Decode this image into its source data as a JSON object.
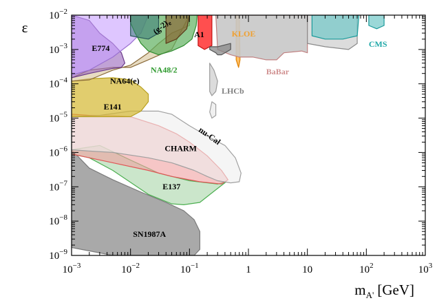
{
  "chart_data": {
    "type": "area",
    "title": "",
    "xlabel": "m",
    "xlabel_subscript": "A'",
    "xlabel_unit": "[GeV]",
    "ylabel": "ε",
    "xscale": "log",
    "yscale": "log",
    "xlim": [
      0.001,
      1000
    ],
    "ylim": [
      1e-09,
      0.01
    ],
    "x_ticks": [
      {
        "value": 0.001,
        "base": "10",
        "exp": "−3"
      },
      {
        "value": 0.01,
        "base": "10",
        "exp": "−2"
      },
      {
        "value": 0.1,
        "base": "10",
        "exp": "−1"
      },
      {
        "value": 1,
        "base": "1",
        "exp": ""
      },
      {
        "value": 10,
        "base": "10",
        "exp": ""
      },
      {
        "value": 100,
        "base": "10",
        "exp": "2"
      },
      {
        "value": 1000,
        "base": "10",
        "exp": "3"
      }
    ],
    "y_ticks": [
      {
        "value": 1e-09,
        "base": "10",
        "exp": "−9"
      },
      {
        "value": 1e-08,
        "base": "10",
        "exp": "−8"
      },
      {
        "value": 1e-07,
        "base": "10",
        "exp": "−7"
      },
      {
        "value": 1e-06,
        "base": "10",
        "exp": "−6"
      },
      {
        "value": 1e-05,
        "base": "10",
        "exp": "−5"
      },
      {
        "value": 0.0001,
        "base": "10",
        "exp": "−4"
      },
      {
        "value": 0.001,
        "base": "10",
        "exp": "−3"
      },
      {
        "value": 0.01,
        "base": "10",
        "exp": "−2"
      }
    ],
    "regions": [
      {
        "name": "SN1987A",
        "fill": "#8c8c8c",
        "stroke": "#7a7a7a",
        "opacity": 0.75,
        "points": [
          [
            0.001,
            1.2e-06
          ],
          [
            0.002,
            3.5e-07
          ],
          [
            0.005,
            1.6e-07
          ],
          [
            0.015,
            7e-08
          ],
          [
            0.04,
            3.5e-08
          ],
          [
            0.08,
            2e-08
          ],
          [
            0.12,
            1.1e-08
          ],
          [
            0.15,
            5e-09
          ],
          [
            0.15,
            1.5e-09
          ],
          [
            0.12,
            1e-09
          ],
          [
            0.005,
            1e-09
          ],
          [
            0.001,
            1.7e-09
          ]
        ]
      },
      {
        "name": "E137",
        "fill": "#a8d5a8",
        "stroke": "#4caf50",
        "opacity": 0.6,
        "points": [
          [
            0.001,
            1.2e-06
          ],
          [
            0.003,
            1.6e-06
          ],
          [
            0.01,
            6e-07
          ],
          [
            0.03,
            2.5e-07
          ],
          [
            0.1,
            1.5e-07
          ],
          [
            0.3,
            1.2e-07
          ],
          [
            0.42,
            1.4e-07
          ],
          [
            0.25,
            7e-08
          ],
          [
            0.15,
            3.5e-08
          ],
          [
            0.08,
            3e-08
          ],
          [
            0.05,
            3.2e-08
          ],
          [
            0.02,
            6e-08
          ],
          [
            0.005,
            3e-07
          ],
          [
            0.002,
            7e-07
          ],
          [
            0.001,
            9e-07
          ]
        ]
      },
      {
        "name": "CHARM",
        "fill": "#f0a0a0",
        "stroke": "#e05555",
        "opacity": 0.6,
        "points": [
          [
            0.001,
            1.3e-05
          ],
          [
            0.002,
            1.2e-05
          ],
          [
            0.005,
            1.2e-05
          ],
          [
            0.01,
            1.1e-05
          ],
          [
            0.03,
            6e-06
          ],
          [
            0.06,
            3.5e-06
          ],
          [
            0.1,
            2e-06
          ],
          [
            0.2,
            8e-07
          ],
          [
            0.35,
            3e-07
          ],
          [
            0.45,
            1.6e-07
          ],
          [
            0.35,
            1.2e-07
          ],
          [
            0.15,
            1.4e-07
          ],
          [
            0.05,
            2e-07
          ],
          [
            0.02,
            3e-07
          ],
          [
            0.005,
            5e-07
          ],
          [
            0.002,
            7e-07
          ],
          [
            0.001,
            9e-07
          ]
        ]
      },
      {
        "name": "nu-Cal",
        "fill": "#eeeeee",
        "stroke": "#a0a0a0",
        "opacity": 0.6,
        "points": [
          [
            0.001,
            1.1e-05
          ],
          [
            0.003,
            1.2e-05
          ],
          [
            0.01,
            1.6e-05
          ],
          [
            0.03,
            1.6e-05
          ],
          [
            0.05,
            1.3e-05
          ],
          [
            0.1,
            6e-06
          ],
          [
            0.2,
            3e-06
          ],
          [
            0.4,
            1.6e-06
          ],
          [
            0.6,
            7e-07
          ],
          [
            0.75,
            2.5e-07
          ],
          [
            0.7,
            1.4e-07
          ],
          [
            0.5,
            1.3e-07
          ],
          [
            0.3,
            1.5e-07
          ],
          [
            0.2,
            2e-07
          ],
          [
            0.12,
            3e-07
          ],
          [
            0.05,
            5e-07
          ],
          [
            0.02,
            7e-07
          ],
          [
            0.005,
            1e-06
          ],
          [
            0.002,
            1.1e-06
          ],
          [
            0.001,
            1.2e-06
          ]
        ]
      },
      {
        "name": "E141",
        "fill": "#d4b830",
        "stroke": "#b8a020",
        "opacity": 0.7,
        "points": [
          [
            0.001,
            0.00012
          ],
          [
            0.002,
            0.00014
          ],
          [
            0.005,
            0.00015
          ],
          [
            0.01,
            0.00013
          ],
          [
            0.015,
            8e-05
          ],
          [
            0.02,
            5e-05
          ],
          [
            0.02,
            3e-05
          ],
          [
            0.015,
            1.6e-05
          ],
          [
            0.01,
            1.1e-05
          ],
          [
            0.005,
            1.1e-05
          ],
          [
            0.002,
            1.1e-05
          ],
          [
            0.001,
            1.1e-05
          ]
        ]
      },
      {
        "name": "NA64(e)",
        "fill": "#d6c090",
        "stroke": "#8a6a3a",
        "opacity": 0.55,
        "points": [
          [
            0.001,
            0.00015
          ],
          [
            0.002,
            0.00025
          ],
          [
            0.005,
            0.0003
          ],
          [
            0.01,
            0.0003
          ],
          [
            0.02,
            0.0005
          ],
          [
            0.05,
            0.001
          ],
          [
            0.1,
            0.01
          ],
          [
            0.1,
            0.005
          ],
          [
            0.05,
            0.003
          ],
          [
            0.03,
            0.0015
          ],
          [
            0.02,
            0.0008
          ],
          [
            0.01,
            0.00035
          ],
          [
            0.005,
            0.00025
          ],
          [
            0.002,
            0.00013
          ],
          [
            0.001,
            0.00012
          ]
        ]
      },
      {
        "name": "E774",
        "fill": "#a070c0",
        "stroke": "#6a3a8a",
        "opacity": 0.65,
        "points": [
          [
            0.001,
            0.01
          ],
          [
            0.002,
            0.007
          ],
          [
            0.003,
            0.003
          ],
          [
            0.005,
            0.0015
          ],
          [
            0.007,
            0.0008
          ],
          [
            0.008,
            0.0004
          ],
          [
            0.007,
            0.0003
          ],
          [
            0.005,
            0.00028
          ],
          [
            0.002,
            0.0002
          ],
          [
            0.001,
            0.00015
          ]
        ]
      },
      {
        "name": "(g-2)e",
        "fill": "#c8a0ff",
        "stroke": "#9a70d0",
        "opacity": 0.6,
        "points": [
          [
            0.001,
            0.01
          ],
          [
            0.02,
            0.01
          ],
          [
            0.015,
            0.003
          ],
          [
            0.01,
            0.0015
          ],
          [
            0.005,
            0.0006
          ],
          [
            0.002,
            0.00025
          ],
          [
            0.001,
            0.00018
          ]
        ]
      },
      {
        "name": "NA48/2",
        "fill": "#5fb05f",
        "stroke": "#2e8b2e",
        "opacity": 0.7,
        "points": [
          [
            0.01,
            0.01
          ],
          [
            0.135,
            0.01
          ],
          [
            0.13,
            0.005
          ],
          [
            0.11,
            0.002
          ],
          [
            0.08,
            0.0013
          ],
          [
            0.05,
            0.0009
          ],
          [
            0.03,
            0.0007
          ],
          [
            0.02,
            0.0009
          ],
          [
            0.015,
            0.0015
          ],
          [
            0.012,
            0.003
          ],
          [
            0.01,
            0.006
          ]
        ]
      },
      {
        "name": "KLOE-dark",
        "fill": "#3a7a7a",
        "stroke": "#2a5a5a",
        "opacity": 0.55,
        "points": [
          [
            0.01,
            0.01
          ],
          [
            0.03,
            0.01
          ],
          [
            0.03,
            0.003
          ],
          [
            0.02,
            0.002
          ],
          [
            0.01,
            0.0025
          ]
        ]
      },
      {
        "name": "(g-2)mu",
        "fill": "#8b5a2b",
        "stroke": "#5a3a1a",
        "opacity": 0.6,
        "points": [
          [
            0.04,
            0.01
          ],
          [
            0.1,
            0.01
          ],
          [
            0.09,
            0.004
          ],
          [
            0.06,
            0.002
          ],
          [
            0.04,
            0.0015
          ]
        ]
      },
      {
        "name": "A1",
        "fill": "#ff3030",
        "stroke": "#c01010",
        "opacity": 0.85,
        "points": [
          [
            0.14,
            0.01
          ],
          [
            0.24,
            0.01
          ],
          [
            0.24,
            0.0013
          ],
          [
            0.18,
            0.001
          ],
          [
            0.14,
            0.0013
          ]
        ]
      },
      {
        "name": "KLOE",
        "fill": "#ffb040",
        "stroke": "#e08000",
        "opacity": 0.8,
        "points": [
          [
            0.62,
            0.01
          ],
          [
            0.7,
            0.01
          ],
          [
            0.72,
            0.0005
          ],
          [
            0.68,
            0.0003
          ],
          [
            0.62,
            0.0005
          ]
        ]
      },
      {
        "name": "BaBar",
        "fill": "#c8c8c8",
        "stroke": "#c08080",
        "opacity": 0.9,
        "points": [
          [
            0.28,
            0.01
          ],
          [
            10,
            0.01
          ],
          [
            10,
            0.0008
          ],
          [
            8,
            0.0009
          ],
          [
            4,
            0.0008
          ],
          [
            3,
            0.0005
          ],
          [
            2,
            0.0005
          ],
          [
            1.2,
            0.0006
          ],
          [
            0.7,
            0.0006
          ],
          [
            0.5,
            0.0007
          ],
          [
            0.3,
            0.001
          ]
        ]
      },
      {
        "name": "LHCb-prompt",
        "fill": "#888888",
        "stroke": "#555555",
        "opacity": 0.75,
        "points": [
          [
            0.22,
            0.001
          ],
          [
            0.28,
            0.0008
          ],
          [
            0.3,
            0.0007
          ],
          [
            0.35,
            0.0007
          ],
          [
            0.5,
            0.001
          ],
          [
            0.5,
            0.0015
          ],
          [
            0.3,
            0.0012
          ],
          [
            0.22,
            0.0012
          ]
        ]
      },
      {
        "name": "LHCb-displaced",
        "fill": "#d8d8d8",
        "stroke": "#9a9a9a",
        "opacity": 0.9,
        "points": [
          [
            0.22,
            0.0004
          ],
          [
            0.26,
            0.00025
          ],
          [
            0.3,
            0.00012
          ],
          [
            0.28,
            6e-05
          ],
          [
            0.24,
            4.5e-05
          ],
          [
            0.22,
            6e-05
          ]
        ]
      },
      {
        "name": "LHCb-island",
        "fill": "#eeeeee",
        "stroke": "#a0a0a0",
        "opacity": 0.9,
        "points": [
          [
            0.24,
            3e-05
          ],
          [
            0.28,
            2.5e-05
          ],
          [
            0.28,
            1.2e-05
          ],
          [
            0.24,
            1e-05
          ],
          [
            0.22,
            1.5e-05
          ]
        ]
      },
      {
        "name": "LHCb-upper",
        "fill": "#d8d8d8",
        "stroke": "#8a8a8a",
        "opacity": 0.9,
        "points": [
          [
            10,
            0.01
          ],
          [
            70,
            0.01
          ],
          [
            70,
            0.0015
          ],
          [
            50,
            0.001
          ],
          [
            20,
            0.0012
          ],
          [
            10,
            0.0015
          ]
        ]
      },
      {
        "name": "CMS",
        "fill": "#70c8c8",
        "stroke": "#1a9a9a",
        "opacity": 0.7,
        "points": [
          [
            12,
            0.01
          ],
          [
            75,
            0.01
          ],
          [
            70,
            0.0025
          ],
          [
            40,
            0.002
          ],
          [
            20,
            0.002
          ],
          [
            12,
            0.0025
          ]
        ]
      },
      {
        "name": "CMS-high",
        "fill": "#70c8c8",
        "stroke": "#1a9a9a",
        "opacity": 0.7,
        "points": [
          [
            110,
            0.01
          ],
          [
            200,
            0.01
          ],
          [
            200,
            0.005
          ],
          [
            150,
            0.004
          ],
          [
            110,
            0.005
          ]
        ]
      }
    ],
    "labels": [
      {
        "text": "E774",
        "x": 0.0022,
        "y": 0.0009,
        "color": "#000000",
        "rotate": 0
      },
      {
        "text": "NA64(e)",
        "x": 0.0045,
        "y": 0.0001,
        "color": "#000000",
        "rotate": 0
      },
      {
        "text": "E141",
        "x": 0.0035,
        "y": 1.8e-05,
        "color": "#000000",
        "rotate": 0
      },
      {
        "text": "(g-2)",
        "x": 0.027,
        "y": 0.0027,
        "color": "#000000",
        "rotate": -40,
        "sub": "e"
      },
      {
        "text": "NA48/2",
        "x": 0.022,
        "y": 0.00021,
        "color": "#2e9a2e",
        "rotate": 0
      },
      {
        "text": "A1",
        "x": 0.12,
        "y": 0.0023,
        "color": "#000000",
        "rotate": 0
      },
      {
        "text": "KLOE",
        "x": 0.52,
        "y": 0.0024,
        "color": "#f0a030",
        "rotate": 0
      },
      {
        "text": "LHCb",
        "x": 0.35,
        "y": 5.2e-05,
        "color": "#808080",
        "rotate": 0
      },
      {
        "text": "BaBar",
        "x": 2.0,
        "y": 0.00019,
        "color": "#d09090",
        "rotate": 0
      },
      {
        "text": "CMS",
        "x": 110,
        "y": 0.0012,
        "color": "#20a8a8",
        "rotate": 0
      },
      {
        "text": "nu-Cal",
        "x": 0.14,
        "y": 4.2e-06,
        "color": "#000000",
        "rotate": 35
      },
      {
        "text": "CHARM",
        "x": 0.038,
        "y": 1.1e-06,
        "color": "#000000",
        "rotate": 0
      },
      {
        "text": "E137",
        "x": 0.035,
        "y": 8.5e-08,
        "color": "#000000",
        "rotate": 0
      },
      {
        "text": "SN1987A",
        "x": 0.011,
        "y": 3.5e-09,
        "color": "#000000",
        "rotate": 0
      }
    ]
  }
}
